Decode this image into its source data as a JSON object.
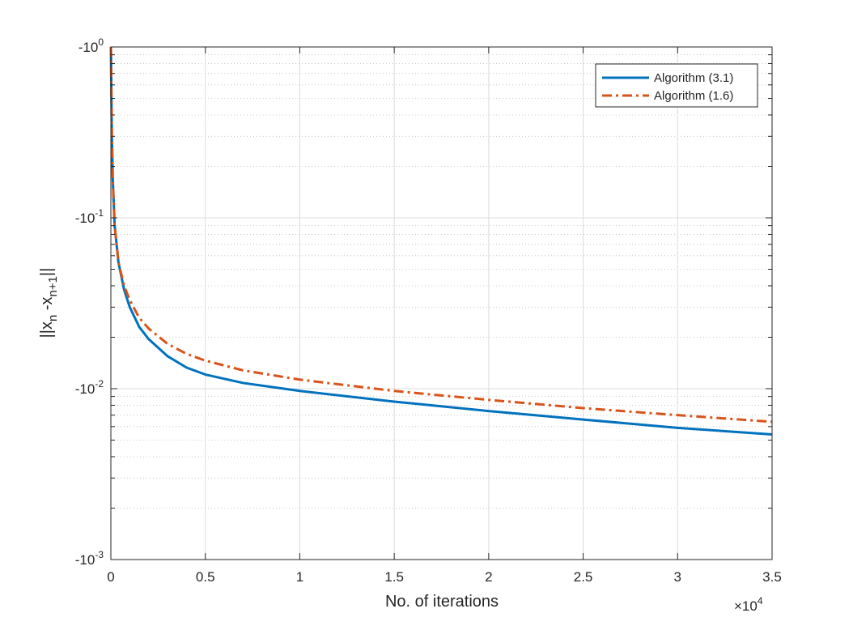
{
  "chart_data": {
    "type": "line",
    "xlabel": "No. of iterations",
    "ylabel": "||x_n -x_n+1||",
    "ylabel_parts": {
      "main": "||x",
      "sub_n": "n",
      "dash": " -x",
      "sub_n1": "n+1",
      "close": "||"
    },
    "x_exponent_label": {
      "times": "×10",
      "power": "4"
    },
    "xlim": [
      0,
      35000
    ],
    "ylim": [
      -1,
      -0.001
    ],
    "yscale": "log (negative values)",
    "x_ticks": [
      0,
      5000,
      10000,
      15000,
      20000,
      25000,
      30000,
      35000
    ],
    "x_tick_labels": [
      "0",
      "0.5",
      "1",
      "1.5",
      "2",
      "2.5",
      "3",
      "3.5"
    ],
    "y_tick_labels": [
      {
        "base": "-10",
        "exp": "0",
        "value": -1
      },
      {
        "base": "-10",
        "exp": "-1",
        "value": -0.1
      },
      {
        "base": "-10",
        "exp": "-2",
        "value": -0.01
      },
      {
        "base": "-10",
        "exp": "-3",
        "value": -0.001
      }
    ],
    "grid": true,
    "legend_position": "top-right",
    "series": [
      {
        "name": "Algorithm (3.1)",
        "color": "#0072BD",
        "style": "solid",
        "x": [
          1,
          50,
          100,
          200,
          400,
          700,
          1000,
          1500,
          2000,
          3000,
          4000,
          5000,
          7000,
          10000,
          15000,
          20000,
          25000,
          30000,
          35000
        ],
        "y": [
          -1,
          -0.32,
          -0.17,
          -0.09,
          -0.055,
          -0.038,
          -0.03,
          -0.023,
          -0.0195,
          -0.0155,
          -0.0133,
          -0.0121,
          -0.0108,
          -0.0097,
          -0.0084,
          -0.0074,
          -0.0066,
          -0.0059,
          -0.0054
        ]
      },
      {
        "name": "Algorithm (1.6)",
        "color": "#D95319",
        "style": "dash-dot",
        "x": [
          1,
          50,
          100,
          200,
          400,
          700,
          1000,
          1500,
          2000,
          3000,
          4000,
          5000,
          7000,
          10000,
          15000,
          20000,
          25000,
          30000,
          35000
        ],
        "y": [
          -1,
          -0.32,
          -0.17,
          -0.09,
          -0.055,
          -0.04,
          -0.033,
          -0.026,
          -0.0225,
          -0.0183,
          -0.016,
          -0.0146,
          -0.0128,
          -0.0113,
          -0.0097,
          -0.0086,
          -0.0077,
          -0.007,
          -0.0064
        ]
      }
    ]
  }
}
